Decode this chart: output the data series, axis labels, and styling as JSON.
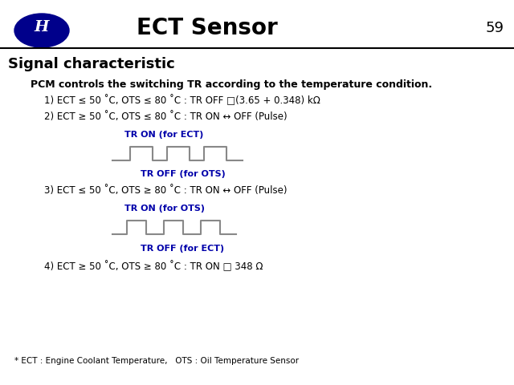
{
  "title": "ECT Sensor",
  "page_num": "59",
  "section_title": "Signal characteristic",
  "bold_text": "PCM controls the switching TR according to the temperature condition.",
  "line1": "1) ECT ≤ 50 ˚C, OTS ≤ 80 ˚C : TR OFF □(3.65 + 0.348) kΩ",
  "line2": "2) ECT ≥ 50 ˚C, OTS ≤ 80 ˚C : TR ON ↔ OFF (Pulse)",
  "label2a": "TR ON (for ECT)",
  "label2b": "TR OFF (for OTS)",
  "line3": "3) ECT ≤ 50 ˚C, OTS ≥ 80 ˚C : TR ON ↔ OFF (Pulse)",
  "label3a": "TR ON (for OTS)",
  "label3b": "TR OFF (for ECT)",
  "line4": "4) ECT ≥ 50 ˚C, OTS ≥ 80 ˚C : TR ON □ 348 Ω",
  "footnote": "* ECT : Engine Coolant Temperature,   OTS : Oil Temperature Sensor",
  "blue_color": "#0000AA",
  "black_color": "#000000",
  "bg_color": "#ffffff",
  "hyundai_blue": "#00008B",
  "line_color": "#888888"
}
